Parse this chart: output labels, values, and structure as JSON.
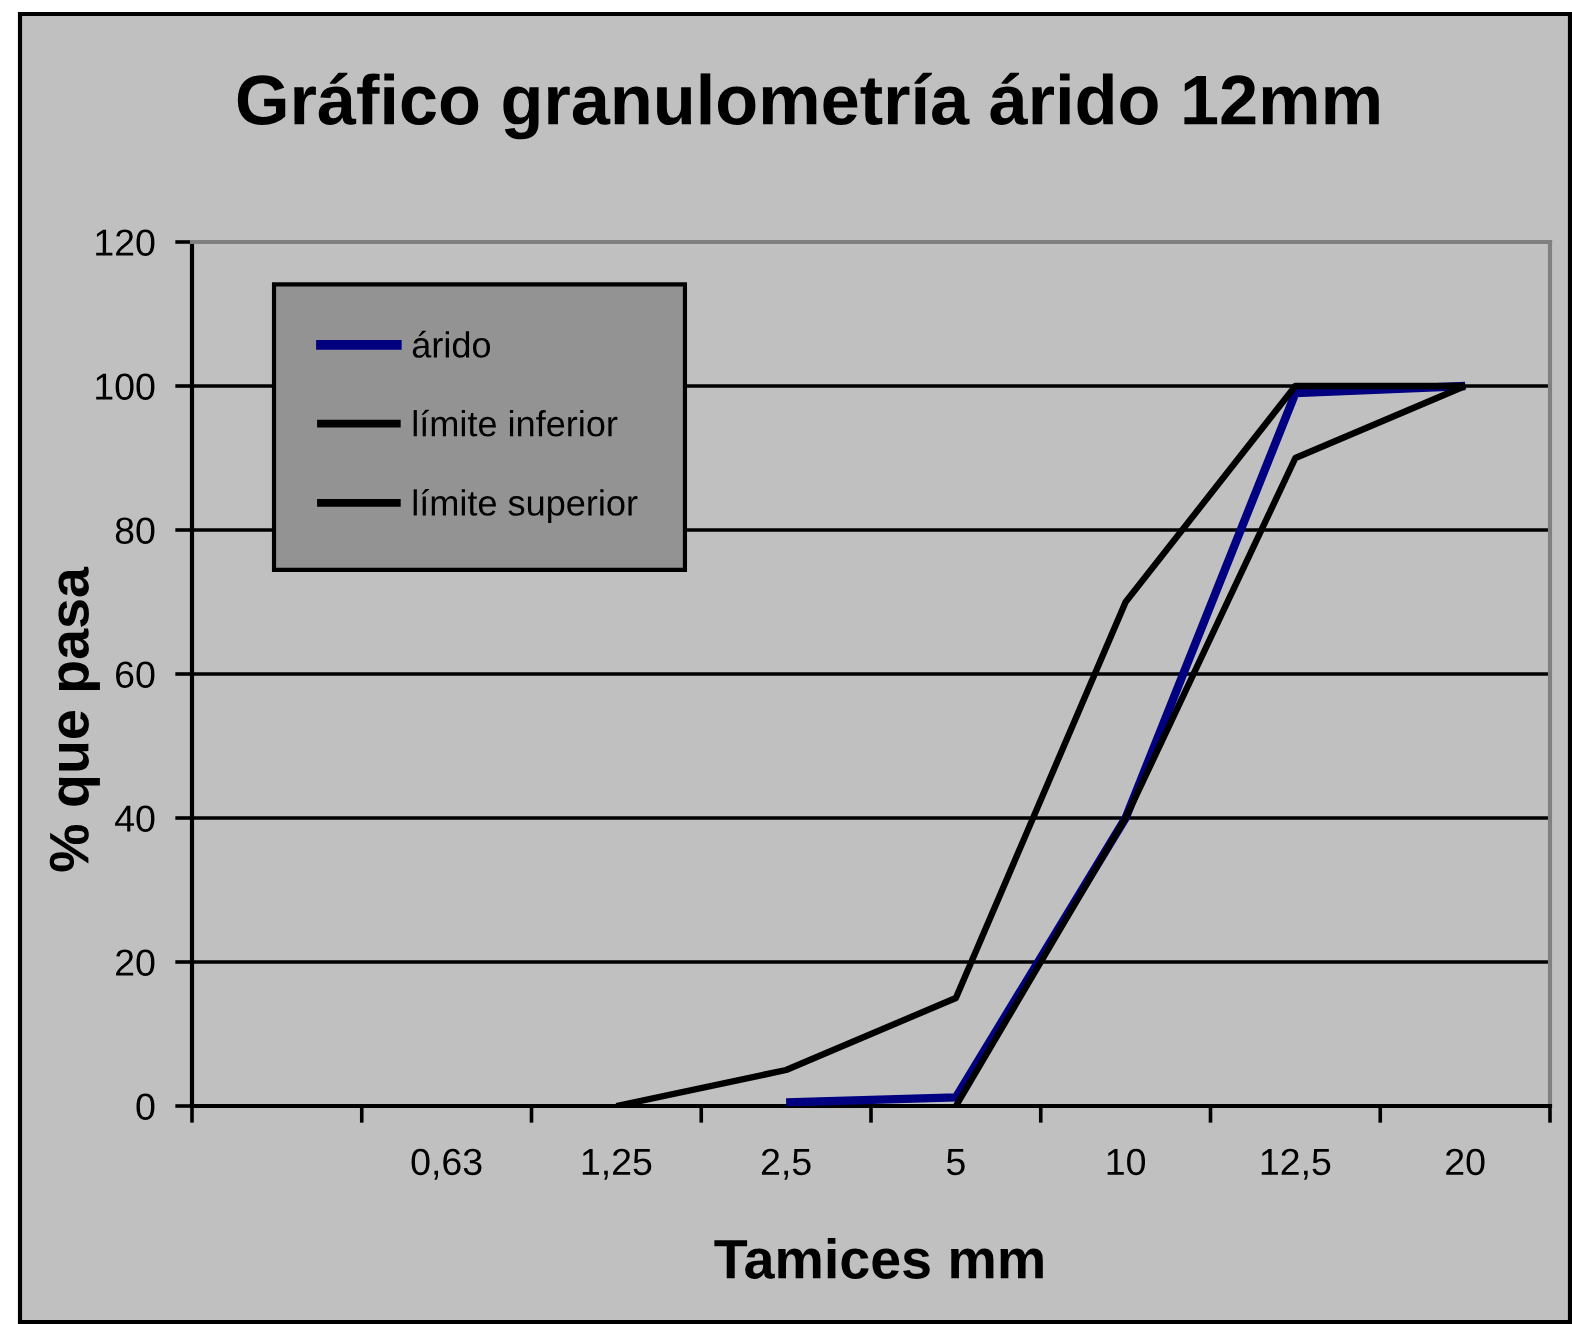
{
  "chart_data": {
    "type": "line",
    "title": "Gráfico granulometría árido 12mm",
    "xlabel": "Tamices mm",
    "ylabel": "% que pasa",
    "categories": [
      null,
      "0,63",
      "1,25",
      "2,5",
      "5",
      "10",
      "12,5",
      "20"
    ],
    "series": [
      {
        "name": "árido",
        "color": "#000080",
        "values": [
          null,
          null,
          null,
          0.5,
          1.2,
          40,
          99,
          100
        ]
      },
      {
        "name": "límite inferior",
        "color": "#000000",
        "values": [
          null,
          null,
          null,
          null,
          0,
          40,
          90,
          100
        ]
      },
      {
        "name": "límite superior",
        "color": "#000000",
        "values": [
          null,
          null,
          0,
          5,
          15,
          70,
          100,
          100
        ]
      }
    ],
    "ylim": [
      0,
      120
    ],
    "yticks": [
      0,
      20,
      40,
      60,
      80,
      100,
      120
    ],
    "grid": "y",
    "legend": "top left"
  }
}
